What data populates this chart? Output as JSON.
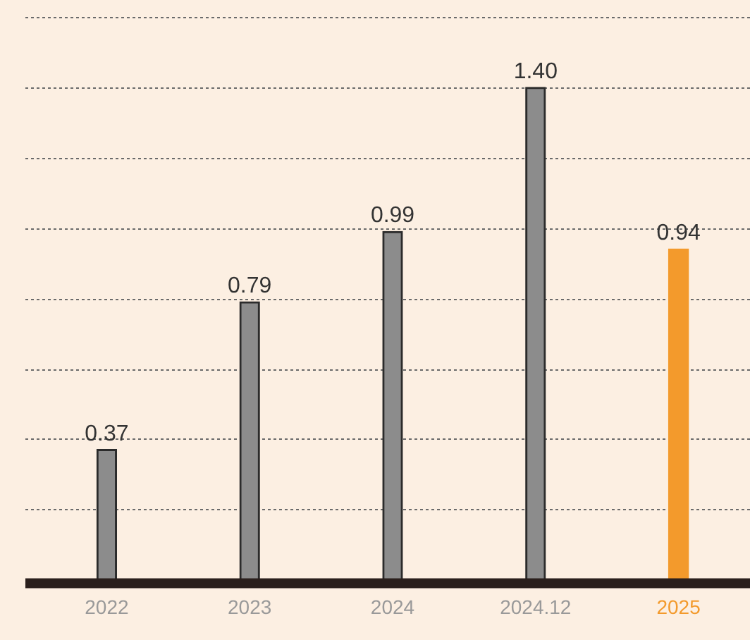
{
  "chart_data": {
    "type": "bar",
    "categories": [
      "2022",
      "2023",
      "2024",
      "2024.12",
      "2025"
    ],
    "values": [
      0.37,
      0.79,
      0.99,
      1.4,
      0.94
    ],
    "colors": [
      "#8c8c8c",
      "#8c8c8c",
      "#8c8c8c",
      "#8c8c8c",
      "#f39a2c"
    ],
    "ylim": [
      0,
      1.6
    ],
    "value_labels": [
      "0.37",
      "0.79",
      "0.99",
      "1.40",
      "0.94"
    ],
    "yticks": [
      {
        "value": 0.2,
        "label": null
      },
      {
        "value": 0.4,
        "label": null
      },
      {
        "value": 0.6,
        "label": null
      },
      {
        "value": 0.8,
        "label": null
      },
      {
        "value": 1.0,
        "label": null
      },
      {
        "value": 1.2,
        "label": null
      },
      {
        "value": 1.4,
        "label": null
      },
      {
        "value": 1.6,
        "label": null
      }
    ],
    "tick_labels": "x",
    "grid": "y",
    "legend": false
  }
}
